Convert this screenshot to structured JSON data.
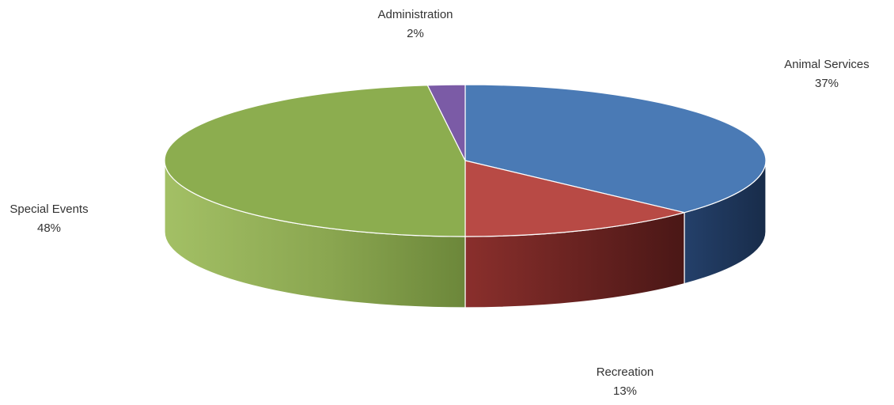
{
  "chart_data": {
    "type": "pie",
    "style": "3d",
    "slices": [
      {
        "label": "Animal Services",
        "pct_label": "37%",
        "value": 37,
        "color": "#4a7ab5",
        "side_color": "#1f3556"
      },
      {
        "label": "Recreation",
        "pct_label": "13%",
        "value": 13,
        "color": "#b84a45",
        "side_color": "#5a1d1c"
      },
      {
        "label": "Special Events",
        "pct_label": "48%",
        "value": 48,
        "color": "#8cad4f",
        "side_color": "#6f8a3d"
      },
      {
        "label": "Administration",
        "pct_label": "2%",
        "value": 2,
        "color": "#7b5ba6",
        "side_color": "#4a3466"
      }
    ],
    "legend": "none"
  }
}
